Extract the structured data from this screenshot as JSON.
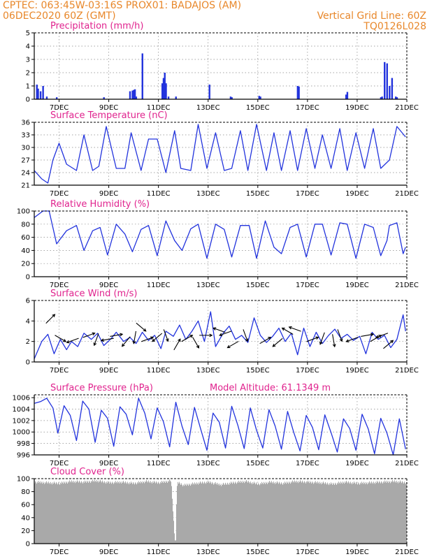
{
  "header": {
    "line1_left": "CPTEC:  063:45W-03:16S  PROX01: BADAJOS (AM)",
    "line2_left": "06DEC2020 60Z (GMT)",
    "line2_right": "Vertical Grid Line: 60Z",
    "line3_right": "TQ0126L028"
  },
  "colors": {
    "series": "#2233dd",
    "cloud": "#a9a9a9",
    "title": "#e0238e",
    "header": "#e8872a",
    "grid": "#888888"
  },
  "chart_data": [
    {
      "id": "precip",
      "type": "bar",
      "title": "Precipitation (mm/h)",
      "ylim": [
        0,
        5
      ],
      "yticks": [
        0,
        1,
        2,
        3,
        4,
        5
      ],
      "x": [
        0.1,
        0.15,
        0.25,
        0.35,
        0.5,
        0.9,
        2.8,
        3.85,
        3.95,
        4.0,
        4.05,
        4.1,
        4.35,
        5.15,
        5.2,
        5.25,
        5.3,
        5.4,
        5.7,
        7.05,
        7.9,
        7.95,
        9.05,
        9.1,
        10.6,
        10.65,
        12.55,
        12.6,
        13.95,
        14.0,
        14.1,
        14.2,
        14.3,
        14.4,
        14.55,
        14.6
      ],
      "values": [
        1.1,
        0.8,
        0.6,
        1.0,
        0.2,
        0.15,
        0.15,
        0.6,
        0.65,
        0.7,
        0.75,
        0.2,
        3.45,
        1.2,
        1.6,
        2.0,
        1.2,
        0.2,
        0.2,
        1.1,
        0.2,
        0.15,
        0.25,
        0.2,
        1.0,
        0.95,
        0.35,
        0.55,
        0.15,
        0.2,
        2.8,
        2.7,
        1.0,
        1.6,
        0.2,
        0.15
      ]
    },
    {
      "id": "temp",
      "type": "line",
      "title": "Surface Temperature (nC)",
      "ylim": [
        21,
        36
      ],
      "yticks": [
        21,
        24,
        27,
        30,
        33,
        36
      ],
      "x": [
        0,
        0.3,
        0.55,
        0.75,
        1.0,
        1.3,
        1.7,
        2.0,
        2.35,
        2.6,
        2.9,
        3.3,
        3.65,
        3.9,
        4.3,
        4.6,
        4.95,
        5.3,
        5.65,
        5.9,
        6.3,
        6.6,
        6.95,
        7.3,
        7.65,
        7.95,
        8.3,
        8.6,
        8.95,
        9.35,
        9.65,
        9.95,
        10.3,
        10.6,
        10.95,
        11.3,
        11.6,
        11.95,
        12.3,
        12.6,
        12.95,
        13.3,
        13.65,
        13.95,
        14.3,
        14.6,
        14.95
      ],
      "values": [
        24.5,
        22.5,
        21.5,
        27,
        31,
        26,
        24.5,
        33,
        24.5,
        25.5,
        35,
        25,
        25,
        33.5,
        24.5,
        32,
        32,
        24,
        34,
        25,
        24.5,
        35.5,
        25,
        33.5,
        24.5,
        25,
        34,
        24.5,
        35.5,
        24.5,
        33.5,
        24.5,
        34,
        24.5,
        34.5,
        25,
        33,
        25,
        34.5,
        24.5,
        33.5,
        25,
        34.5,
        25,
        27,
        35,
        32.5
      ]
    },
    {
      "id": "rh",
      "type": "line",
      "title": "Relative Humidity (%)",
      "ylim": [
        0,
        100
      ],
      "yticks": [
        0,
        20,
        40,
        60,
        80,
        100
      ],
      "x": [
        0,
        0.35,
        0.6,
        0.9,
        1.3,
        1.7,
        2.0,
        2.35,
        2.65,
        2.95,
        3.3,
        3.65,
        3.95,
        4.3,
        4.6,
        4.95,
        5.3,
        5.65,
        5.95,
        6.3,
        6.6,
        6.95,
        7.3,
        7.65,
        7.95,
        8.3,
        8.65,
        8.95,
        9.3,
        9.65,
        9.95,
        10.3,
        10.6,
        10.95,
        11.3,
        11.6,
        11.95,
        12.3,
        12.6,
        12.95,
        13.3,
        13.65,
        13.95,
        14.2,
        14.3,
        14.6,
        14.85,
        14.95
      ],
      "values": [
        90,
        100,
        100,
        50,
        70,
        78,
        40,
        70,
        75,
        33,
        80,
        65,
        38,
        72,
        78,
        32,
        85,
        55,
        40,
        73,
        80,
        28,
        80,
        72,
        30,
        78,
        78,
        28,
        85,
        45,
        35,
        75,
        80,
        30,
        80,
        80,
        33,
        82,
        80,
        28,
        80,
        75,
        32,
        55,
        78,
        82,
        35,
        45
      ]
    },
    {
      "id": "wind",
      "type": "line",
      "title": "Surface Wind (m/s)",
      "ylim": [
        0,
        6
      ],
      "yticks": [
        0,
        2,
        4,
        6
      ],
      "x": [
        0,
        0.3,
        0.55,
        0.8,
        1.05,
        1.3,
        1.5,
        1.75,
        2.0,
        2.3,
        2.55,
        2.8,
        3.1,
        3.3,
        3.6,
        3.85,
        4.1,
        4.35,
        4.6,
        4.85,
        5.1,
        5.3,
        5.6,
        5.85,
        6.1,
        6.35,
        6.6,
        6.85,
        7.1,
        7.3,
        7.6,
        7.85,
        8.1,
        8.35,
        8.6,
        8.85,
        9.1,
        9.35,
        9.6,
        9.85,
        10.1,
        10.35,
        10.6,
        10.85,
        11.1,
        11.35,
        11.6,
        11.85,
        12.1,
        12.35,
        12.6,
        12.85,
        13.1,
        13.35,
        13.6,
        13.85,
        14.1,
        14.35,
        14.6,
        14.85,
        14.95
      ],
      "values": [
        0.3,
        2.0,
        2.7,
        0.8,
        2.2,
        1.2,
        2.0,
        1.5,
        2.8,
        2.2,
        2.8,
        1.6,
        2.3,
        2.9,
        2.0,
        2.4,
        1.8,
        2.9,
        2.1,
        2.6,
        1.3,
        3.0,
        2.5,
        3.6,
        2.2,
        3.0,
        4.0,
        2.0,
        4.9,
        1.5,
        2.8,
        3.5,
        2.2,
        2.6,
        1.9,
        4.3,
        2.6,
        1.9,
        2.5,
        3.3,
        2.0,
        2.8,
        0.7,
        3.3,
        1.5,
        2.9,
        1.8,
        2.6,
        3.2,
        2.3,
        2.7,
        2.1,
        2.5,
        0.8,
        2.9,
        2.2,
        2.6,
        1.4,
        2.2,
        4.6,
        3.0
      ]
    },
    {
      "id": "pressure",
      "type": "line",
      "title": "Surface Pressure (hPa)",
      "annotation": "Model Altitude: 61.1349 m",
      "ylim": [
        996,
        1006.5
      ],
      "yticks": [
        996,
        998,
        1000,
        1002,
        1004,
        1006
      ],
      "x": [
        0,
        0.25,
        0.5,
        0.75,
        0.95,
        1.2,
        1.45,
        1.7,
        1.95,
        2.2,
        2.45,
        2.7,
        2.95,
        3.2,
        3.45,
        3.7,
        3.95,
        4.2,
        4.45,
        4.7,
        4.95,
        5.2,
        5.45,
        5.7,
        5.95,
        6.2,
        6.45,
        6.7,
        6.95,
        7.2,
        7.45,
        7.7,
        7.95,
        8.2,
        8.45,
        8.7,
        8.95,
        9.2,
        9.45,
        9.7,
        9.95,
        10.2,
        10.45,
        10.7,
        10.95,
        11.2,
        11.45,
        11.7,
        11.95,
        12.2,
        12.45,
        12.7,
        12.95,
        13.2,
        13.45,
        13.7,
        13.95,
        14.2,
        14.45,
        14.7,
        14.95
      ],
      "values": [
        1005,
        1005.3,
        1005.9,
        1004.2,
        999.8,
        1004.6,
        1002.9,
        998.5,
        1005.4,
        1004.0,
        998.2,
        1003.8,
        1002.4,
        997.5,
        1004.4,
        1003.1,
        999.5,
        1005.9,
        1003.3,
        998.8,
        1004.2,
        1001.8,
        997.4,
        1005.2,
        1001.0,
        997.8,
        1004.3,
        1000.5,
        996.8,
        1003.3,
        1001.7,
        997.2,
        1004.5,
        1001.1,
        997.1,
        1004.2,
        1000.3,
        997.2,
        1003.9,
        1001.0,
        997.0,
        1003.6,
        999.9,
        996.7,
        1002.9,
        1000.8,
        996.9,
        1003.0,
        999.9,
        996.5,
        1002.3,
        1000.6,
        996.8,
        1003.1,
        1000.5,
        996.2,
        1002.4,
        999.8,
        996.0,
        1002.3,
        997.0
      ]
    },
    {
      "id": "cloud",
      "type": "area",
      "title": "Cloud Cover (%)",
      "ylim": [
        0,
        100
      ],
      "yticks": [
        0,
        20,
        40,
        60,
        80,
        100
      ],
      "x": [
        0,
        0.5,
        1.0,
        1.5,
        2.0,
        2.5,
        3.0,
        3.5,
        4.0,
        4.5,
        5.0,
        5.5,
        5.65,
        5.75,
        6.0,
        6.5,
        7.0,
        7.5,
        8.0,
        8.5,
        9.0,
        9.5,
        10.0,
        10.5,
        11.0,
        11.5,
        12.0,
        12.5,
        13.0,
        13.5,
        14.0,
        14.5,
        15.0
      ],
      "values": [
        97,
        96,
        95,
        98,
        97,
        99,
        96,
        97,
        95,
        98,
        96,
        99,
        5,
        97,
        92,
        95,
        97,
        93,
        96,
        98,
        94,
        97,
        95,
        98,
        97,
        96,
        94,
        97,
        95,
        96,
        97,
        98,
        96
      ]
    }
  ],
  "x_axis": {
    "xlim": [
      0,
      15
    ],
    "tick_positions": [
      1,
      3,
      5,
      7,
      9,
      11,
      13,
      15
    ],
    "tick_labels": [
      "7DEC",
      "9DEC",
      "11DEC",
      "13DEC",
      "15DEC",
      "17DEC",
      "19DEC",
      "21DEC"
    ]
  },
  "wind_arrows": [
    {
      "x": 0.65,
      "y": 4.2,
      "dir": 45
    },
    {
      "x": 1.05,
      "y": 2.3,
      "dir": -30
    },
    {
      "x": 1.55,
      "y": 2.1,
      "dir": 200
    },
    {
      "x": 2.2,
      "y": 2.6,
      "dir": 20
    },
    {
      "x": 2.5,
      "y": 2.2,
      "dir": 250
    },
    {
      "x": 2.95,
      "y": 2.2,
      "dir": 190
    },
    {
      "x": 3.3,
      "y": 2.6,
      "dir": 10
    },
    {
      "x": 3.7,
      "y": 2.0,
      "dir": 230
    },
    {
      "x": 4.05,
      "y": 2.4,
      "dir": 260
    },
    {
      "x": 4.3,
      "y": 3.4,
      "dir": 320
    },
    {
      "x": 4.55,
      "y": 2.2,
      "dir": 20
    },
    {
      "x": 4.95,
      "y": 2.4,
      "dir": 220
    },
    {
      "x": 5.3,
      "y": 2.6,
      "dir": 290
    },
    {
      "x": 5.75,
      "y": 1.7,
      "dir": 60
    },
    {
      "x": 6.15,
      "y": 2.3,
      "dir": 30
    },
    {
      "x": 6.5,
      "y": 1.9,
      "dir": 300
    },
    {
      "x": 6.9,
      "y": 2.6,
      "dir": 0
    },
    {
      "x": 7.45,
      "y": 3.1,
      "dir": 160
    },
    {
      "x": 7.7,
      "y": 2.8,
      "dir": 200
    },
    {
      "x": 8.0,
      "y": 1.7,
      "dir": 210
    },
    {
      "x": 8.5,
      "y": 2.6,
      "dir": 290
    },
    {
      "x": 9.3,
      "y": 2.1,
      "dir": 30
    },
    {
      "x": 9.8,
      "y": 1.9,
      "dir": 220
    },
    {
      "x": 10.2,
      "y": 3.0,
      "dir": 150
    },
    {
      "x": 10.5,
      "y": 3.2,
      "dir": 160
    },
    {
      "x": 11.2,
      "y": 2.2,
      "dir": 20
    },
    {
      "x": 11.6,
      "y": 2.3,
      "dir": 250
    },
    {
      "x": 12.05,
      "y": 2.1,
      "dir": 280
    },
    {
      "x": 12.3,
      "y": 2.6,
      "dir": 290
    },
    {
      "x": 12.8,
      "y": 2.2,
      "dir": 200
    },
    {
      "x": 13.4,
      "y": 2.6,
      "dir": 10
    },
    {
      "x": 13.75,
      "y": 2.3,
      "dir": 30
    },
    {
      "x": 14.0,
      "y": 2.6,
      "dir": 200
    },
    {
      "x": 14.25,
      "y": 1.7,
      "dir": 40
    }
  ]
}
